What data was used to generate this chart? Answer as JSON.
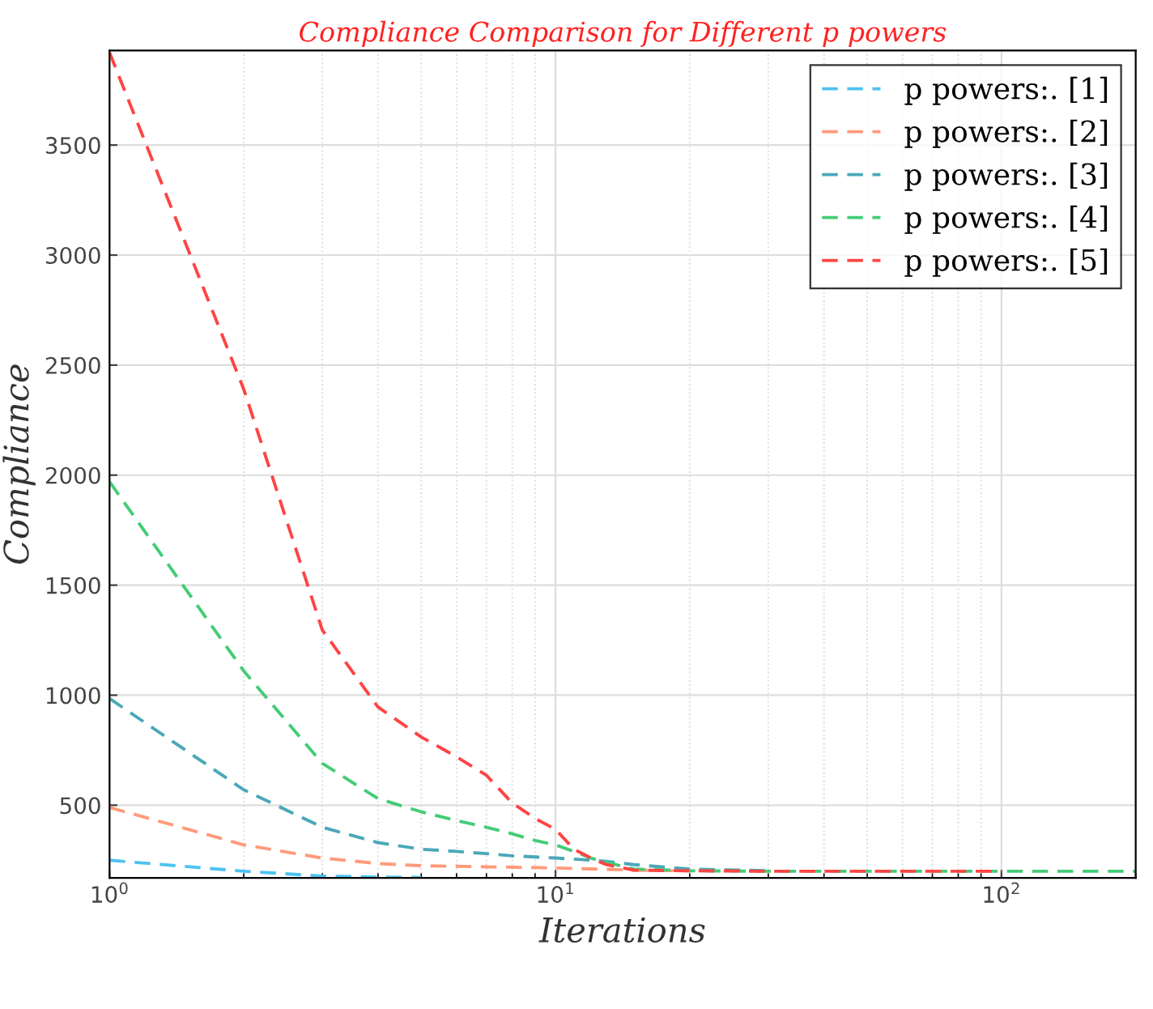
{
  "chart_data": {
    "type": "line",
    "title": "Compliance Comparison for Different p powers",
    "xlabel": "Iterations",
    "ylabel": "Compliance",
    "log": "x",
    "xlim": [
      1,
      200
    ],
    "ylim": [
      170,
      3930
    ],
    "xticks": [
      {
        "value": 1,
        "label": "10$^{0}$"
      },
      {
        "value": 10,
        "label": "10$^{1}$"
      },
      {
        "value": 100,
        "label": "10$^{2}$"
      }
    ],
    "yticks": [
      500,
      1000,
      1500,
      2000,
      2500,
      3000,
      3500
    ],
    "grid": true,
    "legend": "top right",
    "line_style": "dashed",
    "marker": "none",
    "series": [
      {
        "name": "p powers:. [1]",
        "color": "#4dc3f0",
        "x": [
          1,
          2,
          3,
          4,
          5
        ],
        "values": [
          250,
          200,
          178,
          173,
          172
        ]
      },
      {
        "name": "p powers:. [2]",
        "color": "#ff9a7a",
        "x": [
          1,
          2,
          3,
          4,
          5,
          7,
          10,
          15,
          20
        ],
        "values": [
          490,
          320,
          260,
          235,
          225,
          220,
          215,
          205,
          202
        ]
      },
      {
        "name": "p powers:. [3]",
        "color": "#4aa8b8",
        "x": [
          1,
          2,
          3,
          4,
          5,
          6,
          7,
          8,
          9,
          10,
          11,
          12,
          13,
          15,
          20,
          30
        ],
        "values": [
          985,
          570,
          400,
          330,
          300,
          290,
          280,
          270,
          265,
          260,
          255,
          250,
          245,
          230,
          210,
          202
        ]
      },
      {
        "name": "p powers:. [4]",
        "color": "#44cc77",
        "x": [
          1,
          2,
          3,
          4,
          5,
          6,
          7,
          8,
          9,
          10,
          11,
          12,
          13,
          15,
          20,
          30,
          50,
          100,
          200
        ],
        "values": [
          1970,
          1110,
          690,
          530,
          470,
          430,
          400,
          370,
          340,
          320,
          290,
          260,
          240,
          210,
          202,
          200,
          200,
          200,
          200
        ]
      },
      {
        "name": "p powers:. [5]",
        "color": "#ff4444",
        "x": [
          1,
          2,
          3,
          4,
          5,
          6,
          7,
          8,
          9,
          10,
          11,
          12,
          13,
          15,
          20,
          30,
          50,
          100
        ],
        "values": [
          3920,
          2390,
          1296,
          946,
          810,
          720,
          636,
          510,
          440,
          390,
          300,
          260,
          230,
          205,
          202,
          200,
          200,
          200
        ]
      }
    ]
  }
}
